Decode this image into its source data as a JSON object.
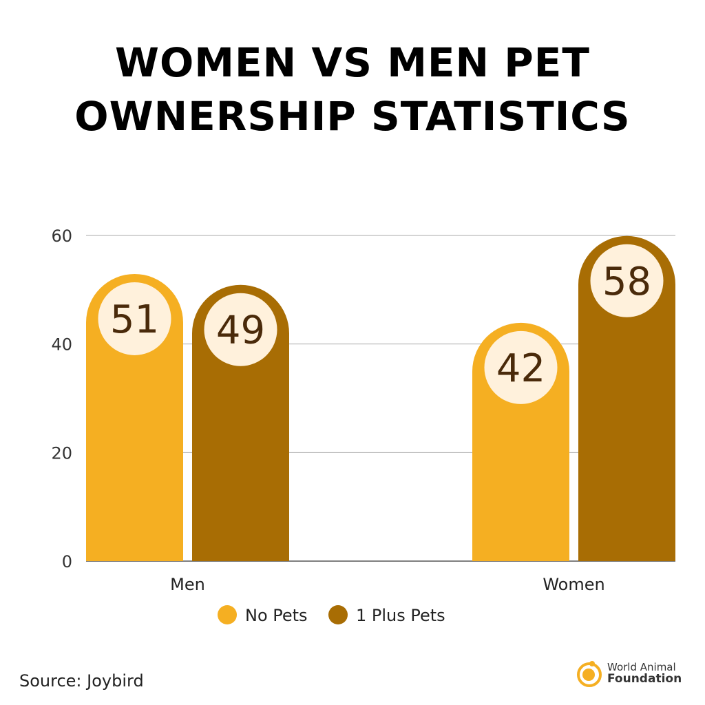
{
  "chart_data": {
    "type": "bar",
    "title": "WOMEN VS MEN PET OWNERSHIP STATISTICS",
    "categories": [
      "Men",
      "Women"
    ],
    "series": [
      {
        "name": "No Pets",
        "values": [
          51,
          42
        ],
        "color": "#F5AF22"
      },
      {
        "name": "1 Plus Pets",
        "values": [
          49,
          58
        ],
        "color": "#A86D04"
      }
    ],
    "ylim": [
      0,
      60
    ],
    "yticks": [
      "0",
      "20",
      "40",
      "60"
    ],
    "grid": true,
    "legend": "bottom",
    "label_bg": "#FFF1DC",
    "label_color": "#4A2A0A"
  },
  "source": "Source: Joybird",
  "logo": {
    "line1": "World Animal",
    "line2": "Foundation"
  }
}
